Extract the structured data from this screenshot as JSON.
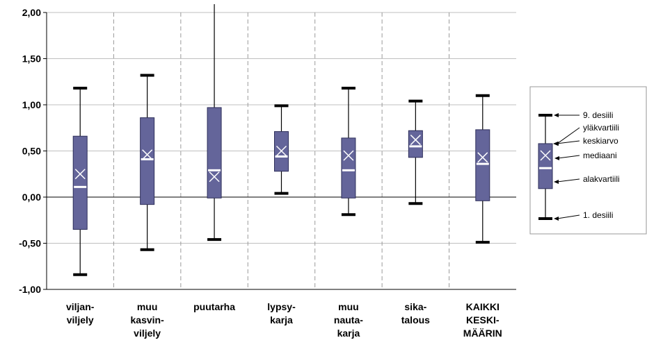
{
  "chart_data": {
    "type": "boxplot",
    "ylim": [
      -1.0,
      2.0
    ],
    "yticks": [
      {
        "value": 2.0,
        "label": "2,00"
      },
      {
        "value": 1.5,
        "label": "1,50"
      },
      {
        "value": 1.0,
        "label": "1,00"
      },
      {
        "value": 0.5,
        "label": "0,50"
      },
      {
        "value": 0.0,
        "label": "0,00"
      },
      {
        "value": -0.5,
        "label": "-0,50"
      },
      {
        "value": -1.0,
        "label": "-1,00"
      }
    ],
    "grid": true,
    "legend_position": "right",
    "colors": {
      "box": "#64659A",
      "box_edge": "#2e2f5a",
      "marker": "#ffffff",
      "whisker": "#000000",
      "grid": "#bfbfbf"
    },
    "categories": [
      {
        "label_lines": [
          "viljan-",
          "viljely"
        ],
        "d1": -0.84,
        "q1": -0.35,
        "median": 0.11,
        "mean": 0.25,
        "q3": 0.66,
        "d9": 1.18
      },
      {
        "label_lines": [
          "muu",
          "kasvin-",
          "viljely"
        ],
        "d1": -0.57,
        "q1": -0.08,
        "median": 0.41,
        "mean": 0.46,
        "q3": 0.86,
        "d9": 1.32
      },
      {
        "label_lines": [
          "puutarha"
        ],
        "d1": -0.46,
        "q1": -0.01,
        "median": 0.29,
        "mean": 0.22,
        "q3": 0.97,
        "d9": 2.15
      },
      {
        "label_lines": [
          "lypsy-",
          "karja"
        ],
        "d1": 0.04,
        "q1": 0.28,
        "median": 0.44,
        "mean": 0.5,
        "q3": 0.71,
        "d9": 0.99
      },
      {
        "label_lines": [
          "muu",
          "nauta-",
          "karja"
        ],
        "d1": -0.19,
        "q1": -0.01,
        "median": 0.29,
        "mean": 0.45,
        "q3": 0.64,
        "d9": 1.18
      },
      {
        "label_lines": [
          "sika-",
          "talous"
        ],
        "d1": -0.07,
        "q1": 0.43,
        "median": 0.55,
        "mean": 0.62,
        "q3": 0.72,
        "d9": 1.04
      },
      {
        "label_lines": [
          "KAIKKI",
          "KESKI-",
          "MÄÄRIN"
        ],
        "d1": -0.49,
        "q1": -0.04,
        "median": 0.36,
        "mean": 0.43,
        "q3": 0.73,
        "d9": 1.1
      }
    ],
    "legend": {
      "items": [
        {
          "key": "d9",
          "label": "9. desiili"
        },
        {
          "key": "q3",
          "label": "yläkvartiili"
        },
        {
          "key": "mean",
          "label": "keskiarvo"
        },
        {
          "key": "median",
          "label": "mediaani"
        },
        {
          "key": "q1",
          "label": "alakvartiili"
        },
        {
          "key": "d1",
          "label": "1. desiili"
        }
      ]
    }
  }
}
